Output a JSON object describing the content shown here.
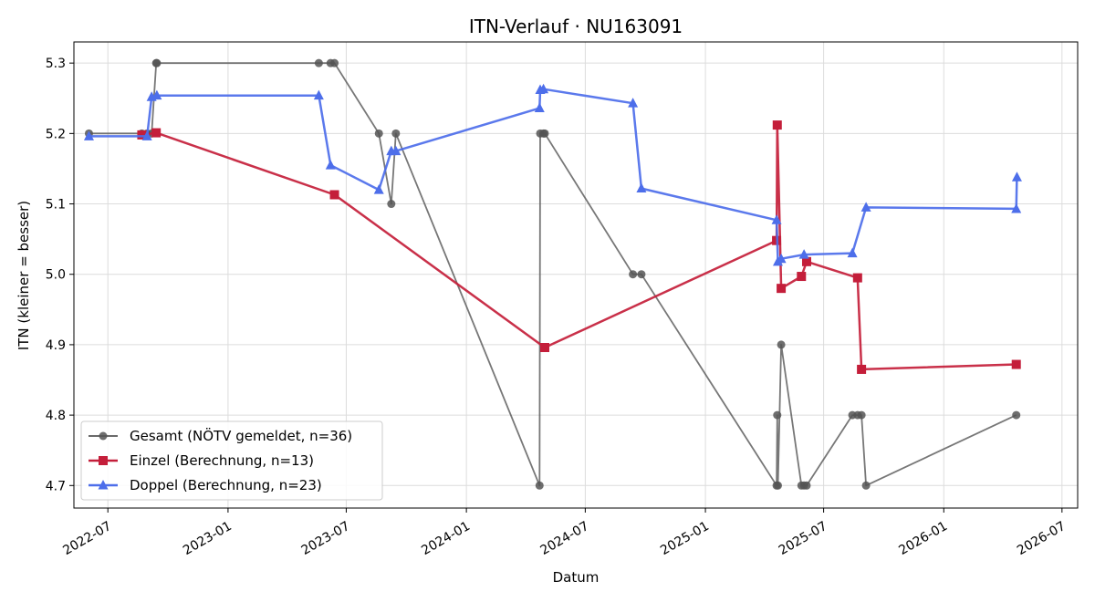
{
  "chart_data": {
    "type": "line",
    "title": "ITN-Verlauf · NU163091",
    "xlabel": "Datum",
    "ylabel": "ITN  (kleiner = besser)",
    "xlim": [
      "2022-05-10",
      "2026-07-25"
    ],
    "ylim": [
      4.668,
      5.33
    ],
    "x_ticks": [
      "2022-07-01",
      "2023-01-01",
      "2023-07-01",
      "2024-01-01",
      "2024-07-01",
      "2025-01-01",
      "2025-07-01",
      "2026-01-01",
      "2026-07-01"
    ],
    "x_tick_labels": [
      "2022-07",
      "2023-01",
      "2023-07",
      "2024-01",
      "2024-07",
      "2025-01",
      "2025-07",
      "2026-01",
      "2026-07"
    ],
    "y_ticks": [
      4.7,
      4.8,
      4.9,
      5.0,
      5.1,
      5.2,
      5.3
    ],
    "y_tick_labels": [
      "4.7",
      "4.8",
      "4.9",
      "5.0",
      "5.1",
      "5.2",
      "5.3"
    ],
    "grid": true,
    "legend_position": "lower-left",
    "series": [
      {
        "name": "Gesamt (NÖTV gemeldet, n=36)",
        "color": "#555555",
        "marker": "circle",
        "points": [
          [
            "2022-06-02",
            5.2
          ],
          [
            "2022-08-22",
            5.2
          ],
          [
            "2022-08-30",
            5.2
          ],
          [
            "2022-09-06",
            5.2
          ],
          [
            "2022-09-13",
            5.3
          ],
          [
            "2022-09-14",
            5.3
          ],
          [
            "2023-05-20",
            5.3
          ],
          [
            "2023-06-07",
            5.3
          ],
          [
            "2023-06-13",
            5.3
          ],
          [
            "2023-08-20",
            5.2
          ],
          [
            "2023-09-08",
            5.1
          ],
          [
            "2023-09-15",
            5.2
          ],
          [
            "2024-04-22",
            4.7
          ],
          [
            "2024-04-23",
            5.2
          ],
          [
            "2024-04-28",
            5.2
          ],
          [
            "2024-04-30",
            5.2
          ],
          [
            "2024-09-12",
            5.0
          ],
          [
            "2024-09-25",
            5.0
          ],
          [
            "2025-04-20",
            4.7
          ],
          [
            "2025-04-21",
            4.8
          ],
          [
            "2025-04-22",
            4.7
          ],
          [
            "2025-04-27",
            4.9
          ],
          [
            "2025-05-28",
            4.7
          ],
          [
            "2025-06-01",
            4.7
          ],
          [
            "2025-06-05",
            4.7
          ],
          [
            "2025-08-14",
            4.8
          ],
          [
            "2025-08-22",
            4.8
          ],
          [
            "2025-08-28",
            4.8
          ],
          [
            "2025-09-04",
            4.7
          ],
          [
            "2026-04-22",
            4.8
          ]
        ]
      },
      {
        "name": "Einzel (Berechnung, n=13)",
        "color": "#C41E3A",
        "marker": "square",
        "points": [
          [
            "2022-08-22",
            5.198
          ],
          [
            "2022-09-13",
            5.201
          ],
          [
            "2023-06-13",
            5.113
          ],
          [
            "2024-04-30",
            4.896
          ],
          [
            "2025-04-20",
            5.048
          ],
          [
            "2025-04-21",
            5.212
          ],
          [
            "2025-04-27",
            4.98
          ],
          [
            "2025-05-28",
            4.997
          ],
          [
            "2025-06-05",
            5.018
          ],
          [
            "2025-08-22",
            4.995
          ],
          [
            "2025-08-28",
            4.865
          ],
          [
            "2026-04-22",
            4.872
          ]
        ]
      },
      {
        "name": "Doppel (Berechnung, n=23)",
        "color": "#4D6EEA",
        "marker": "triangle",
        "points": [
          [
            "2022-06-02",
            5.196
          ],
          [
            "2022-08-30",
            5.196
          ],
          [
            "2022-09-06",
            5.252
          ],
          [
            "2022-09-14",
            5.254
          ],
          [
            "2023-05-20",
            5.254
          ],
          [
            "2023-06-07",
            5.155
          ],
          [
            "2023-08-20",
            5.12
          ],
          [
            "2023-09-08",
            5.175
          ],
          [
            "2023-09-15",
            5.175
          ],
          [
            "2024-04-22",
            5.236
          ],
          [
            "2024-04-23",
            5.262
          ],
          [
            "2024-04-28",
            5.263
          ],
          [
            "2024-09-12",
            5.243
          ],
          [
            "2024-09-25",
            5.122
          ],
          [
            "2025-04-20",
            5.077
          ],
          [
            "2025-04-22",
            5.018
          ],
          [
            "2025-04-27",
            5.022
          ],
          [
            "2025-06-01",
            5.028
          ],
          [
            "2025-08-14",
            5.03
          ],
          [
            "2025-09-04",
            5.095
          ],
          [
            "2026-04-22",
            5.093
          ],
          [
            "2026-04-23",
            5.138
          ]
        ]
      }
    ]
  }
}
